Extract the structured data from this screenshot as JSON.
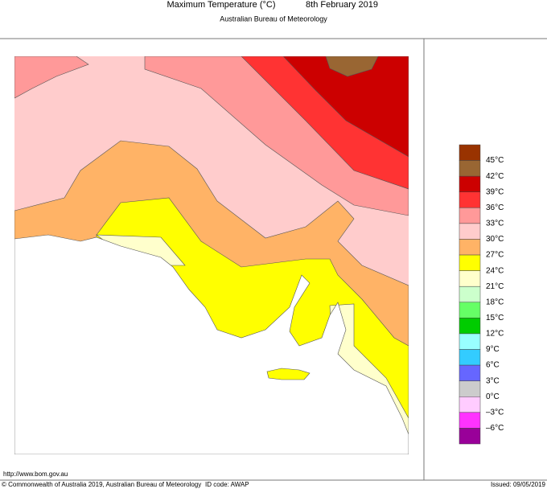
{
  "header": {
    "title": "Maximum Temperature (°C)",
    "date": "8th February 2019",
    "subtitle": "Australian Bureau of Meteorology"
  },
  "legend": {
    "colors": [
      "#993300",
      "#996633",
      "#cc0000",
      "#ff3333",
      "#ff9999",
      "#ffcccc",
      "#ffb366",
      "#ffff00",
      "#ffffcc",
      "#ccffcc",
      "#66ff66",
      "#00cc00",
      "#99ffff",
      "#33ccff",
      "#6666ff",
      "#cccccc",
      "#ffccff",
      "#ff33ff",
      "#990099"
    ],
    "labels": [
      "45°C",
      "42°C",
      "39°C",
      "36°C",
      "33°C",
      "30°C",
      "27°C",
      "24°C",
      "21°C",
      "18°C",
      "15°C",
      "12°C",
      "9°C",
      "6°C",
      "3°C",
      "0°C",
      "–3°C",
      "–6°C"
    ]
  },
  "footer": {
    "url": "http://www.bom.gov.au",
    "copyright": "© Commonwealth of Australia 2019, Australian Bureau of Meteorology",
    "id_code": "ID code: AWAP",
    "issued": "Issued: 09/05/2019"
  }
}
